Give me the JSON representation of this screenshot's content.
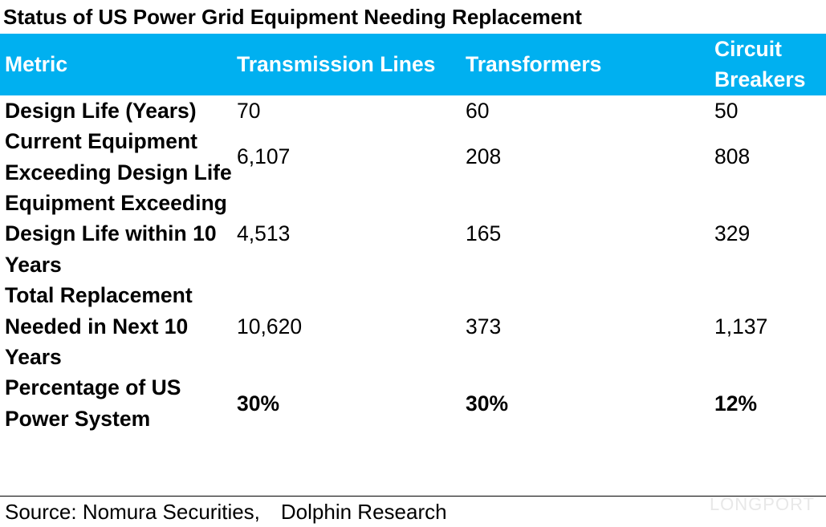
{
  "title": "Status of US Power Grid Equipment Needing Replacement",
  "table": {
    "header": [
      "Metric",
      "Transmission Lines",
      "Transformers",
      "Circuit Breakers"
    ],
    "rows": [
      [
        "Design Life (Years)",
        "70",
        "60",
        "50"
      ],
      [
        "Current Equipment Exceeding Design Life",
        "6,107",
        "208",
        "808"
      ],
      [
        "Equipment Exceeding Design Life within 10 Years",
        "4,513",
        "165",
        "329"
      ],
      [
        "Total Replacement Needed in Next 10 Years",
        "10,620",
        "373",
        "1,137"
      ],
      [
        "Percentage of US Power System",
        "30%",
        "30%",
        "12%"
      ]
    ]
  },
  "source": "Source: Nomura Securities,　Dolphin Research",
  "watermark": "LONGPORT"
}
